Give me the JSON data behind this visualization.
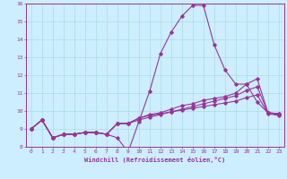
{
  "background_color": "#cceeff",
  "grid_color": "#aadddd",
  "line_color": "#993399",
  "xlabel": "Windchill (Refroidissement éolien,°C)",
  "xlim": [
    -0.5,
    23.5
  ],
  "ylim": [
    8,
    16
  ],
  "yticks": [
    8,
    9,
    10,
    11,
    12,
    13,
    14,
    15,
    16
  ],
  "xticks": [
    0,
    1,
    2,
    3,
    4,
    5,
    6,
    7,
    8,
    9,
    10,
    11,
    12,
    13,
    14,
    15,
    16,
    17,
    18,
    19,
    20,
    21,
    22,
    23
  ],
  "curves": [
    {
      "x": [
        0,
        1,
        2,
        3,
        4,
        5,
        6,
        7,
        8,
        9,
        10,
        11,
        12,
        13,
        14,
        15,
        16,
        17,
        18,
        19,
        20,
        21,
        22,
        23
      ],
      "y": [
        9.0,
        9.5,
        8.5,
        8.7,
        8.7,
        8.8,
        8.8,
        8.7,
        8.5,
        7.7,
        9.4,
        11.1,
        13.2,
        14.4,
        15.3,
        15.9,
        15.9,
        13.7,
        12.3,
        11.5,
        11.5,
        10.5,
        9.9,
        9.85
      ]
    },
    {
      "x": [
        0,
        1,
        2,
        3,
        4,
        5,
        6,
        7,
        8,
        9,
        10,
        11,
        12,
        13,
        14,
        15,
        16,
        17,
        18,
        19,
        20,
        21,
        22,
        23
      ],
      "y": [
        9.0,
        9.5,
        8.5,
        8.7,
        8.7,
        8.8,
        8.8,
        8.7,
        9.3,
        9.3,
        9.6,
        9.75,
        9.85,
        9.95,
        10.05,
        10.15,
        10.25,
        10.35,
        10.45,
        10.55,
        10.75,
        10.9,
        9.85,
        9.75
      ]
    },
    {
      "x": [
        0,
        1,
        2,
        3,
        4,
        5,
        6,
        7,
        8,
        9,
        10,
        11,
        12,
        13,
        14,
        15,
        16,
        17,
        18,
        19,
        20,
        21,
        22,
        23
      ],
      "y": [
        9.0,
        9.5,
        8.5,
        8.7,
        8.7,
        8.8,
        8.8,
        8.7,
        9.3,
        9.3,
        9.5,
        9.65,
        9.8,
        9.95,
        10.1,
        10.25,
        10.4,
        10.55,
        10.7,
        10.85,
        11.15,
        11.35,
        9.9,
        9.8
      ]
    },
    {
      "x": [
        0,
        1,
        2,
        3,
        4,
        5,
        6,
        7,
        8,
        9,
        10,
        11,
        12,
        13,
        14,
        15,
        16,
        17,
        18,
        19,
        20,
        21,
        22,
        23
      ],
      "y": [
        9.0,
        9.5,
        8.5,
        8.7,
        8.7,
        8.8,
        8.8,
        8.7,
        9.3,
        9.3,
        9.6,
        9.8,
        9.9,
        10.1,
        10.3,
        10.4,
        10.6,
        10.7,
        10.8,
        11.0,
        11.5,
        11.8,
        9.9,
        9.85
      ]
    }
  ]
}
